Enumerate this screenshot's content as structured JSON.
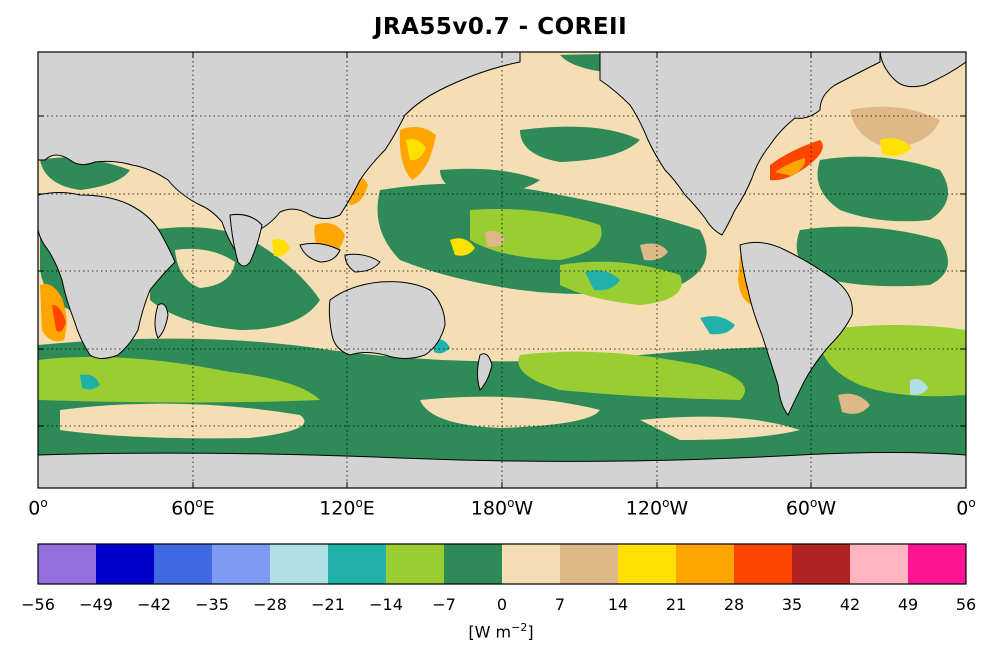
{
  "title": "JRA55v0.7 - COREII",
  "map": {
    "colors": {
      "land": "#d3d3d3",
      "ocean_base": "#f5deb3",
      "frame": "#000000",
      "grid": "#000000"
    },
    "x_ticks": [
      {
        "deg": "0",
        "hem": ""
      },
      {
        "deg": "60",
        "hem": "E"
      },
      {
        "deg": "120",
        "hem": "E"
      },
      {
        "deg": "180",
        "hem": "W"
      },
      {
        "deg": "120",
        "hem": "W"
      },
      {
        "deg": "60",
        "hem": "W"
      },
      {
        "deg": "0",
        "hem": ""
      }
    ],
    "gridlines": "dotted"
  },
  "colorbar": {
    "ticks": [
      "−56",
      "−49",
      "−42",
      "−35",
      "−28",
      "−21",
      "−14",
      "−7",
      "0",
      "7",
      "14",
      "21",
      "28",
      "35",
      "42",
      "49",
      "56"
    ],
    "colors": [
      "#9370db",
      "#0000cd",
      "#4169e1",
      "#7b9cf0",
      "#b0e0e6",
      "#20b2aa",
      "#9acd32",
      "#2e8b57",
      "#f5deb3",
      "#deb887",
      "#ffe000",
      "#ffa500",
      "#ff4500",
      "#b22222",
      "#ffb6c1",
      "#ff1493"
    ],
    "unit_base": "[W m",
    "unit_exp": "−2",
    "unit_close": "]"
  }
}
